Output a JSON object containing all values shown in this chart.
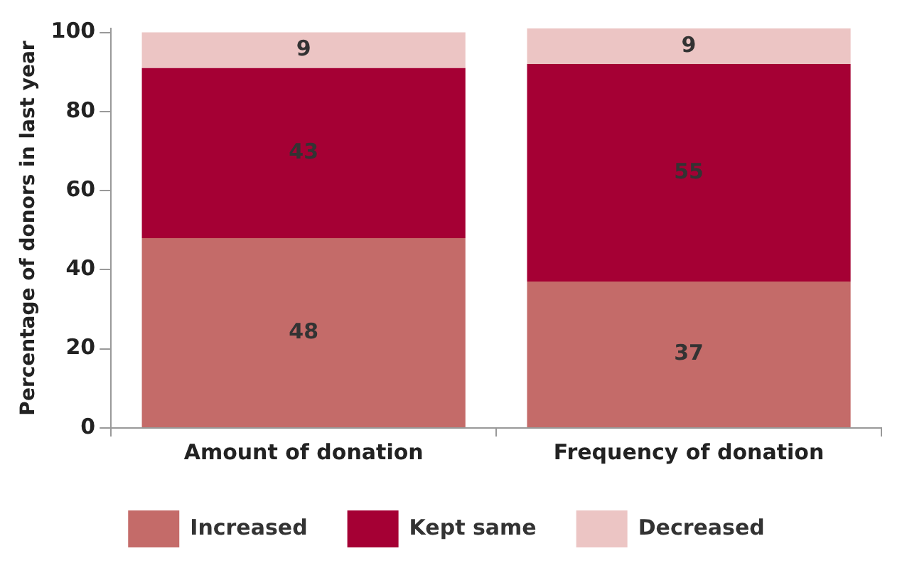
{
  "chart_data": {
    "type": "bar",
    "ylabel": "Percentage of donors in last year",
    "categories": [
      "Amount of donation",
      "Frequency of donation"
    ],
    "series": [
      {
        "name": "Increased",
        "color": "#c46b69",
        "values": [
          48,
          37
        ]
      },
      {
        "name": "Kept same",
        "color": "#a50034",
        "values": [
          43,
          55
        ]
      },
      {
        "name": "Decreased",
        "color": "#ecc5c4",
        "values": [
          9,
          9
        ]
      }
    ],
    "stacked": true,
    "ylim": [
      0,
      101
    ],
    "yticks": [
      0,
      20,
      40,
      60,
      80,
      100
    ],
    "grid": false,
    "legend": "bottom",
    "data_labels": true
  }
}
